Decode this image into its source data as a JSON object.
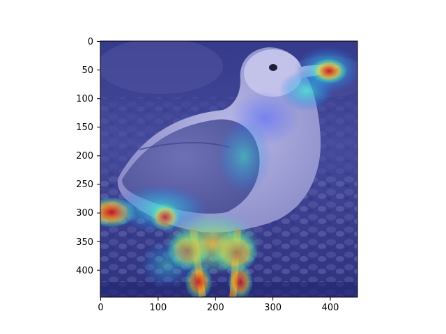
{
  "image": {
    "subject": "seagull standing on pebbles",
    "overlay": "jet colormap attention heatmap",
    "extent": {
      "x": [
        0,
        448
      ],
      "y": [
        0,
        448
      ]
    }
  },
  "axes": {
    "x_ticks": [
      "0",
      "100",
      "200",
      "300",
      "400"
    ],
    "y_ticks": [
      "0",
      "50",
      "100",
      "150",
      "200",
      "250",
      "300",
      "350",
      "400"
    ]
  },
  "colors": {
    "background_tint": "#3b3f94",
    "bird_body": "#9a9bd6",
    "hot": "#d7261e",
    "warm": "#f2d23a",
    "cool": "#35e0c4"
  }
}
